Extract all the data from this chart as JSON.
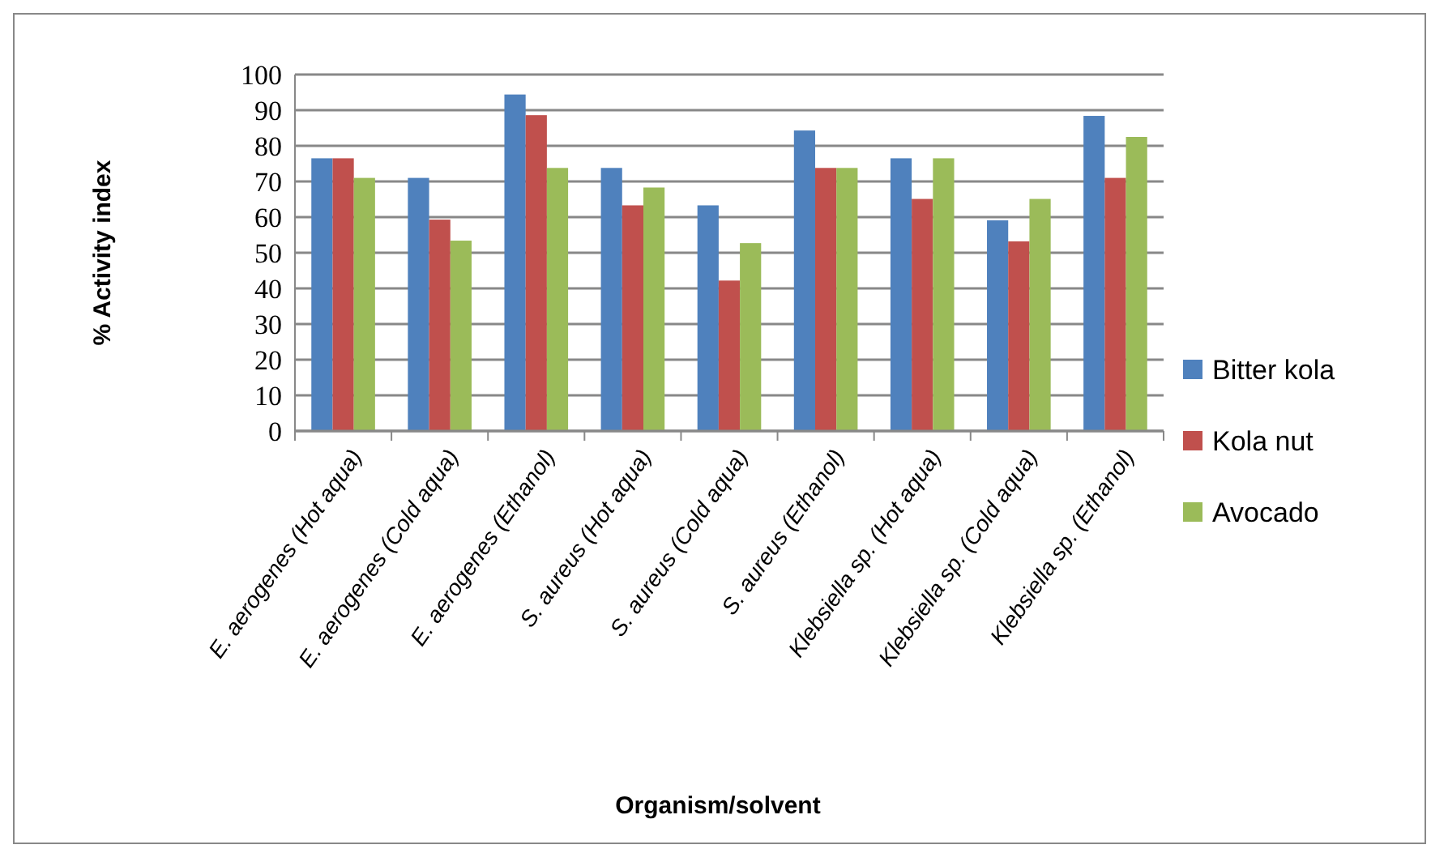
{
  "chart_data": {
    "type": "bar",
    "xlabel": "Organism/solvent",
    "ylabel": "% Activity index",
    "categories": [
      "E. aerogenes (Hot aqua)",
      "E. aerogenes (Cold aqua)",
      "E. aerogenes (Ethanol)",
      "S. aureus (Hot aqua)",
      "S. aureus (Cold aqua)",
      "S. aureus (Ethanol)",
      "Klebsiella sp. (Hot aqua)",
      "Klebsiella sp. (Cold aqua)",
      "Klebsiella sp. (Ethanol)"
    ],
    "series": [
      {
        "name": "Bitter kola",
        "color": "#4f81bd",
        "values": [
          76.5,
          71,
          94.4,
          73.8,
          63.3,
          84.3,
          76.5,
          59.1,
          88.4
        ]
      },
      {
        "name": "Kola nut",
        "color": "#c0504d",
        "values": [
          76.5,
          59.3,
          88.6,
          63.3,
          42.2,
          73.8,
          65.1,
          53.2,
          71
        ]
      },
      {
        "name": "Avocado",
        "color": "#9bbb59",
        "values": [
          71,
          53.4,
          73.8,
          68.3,
          52.7,
          73.8,
          76.5,
          65.1,
          82.5
        ]
      }
    ],
    "ylim": [
      0,
      100
    ],
    "yticks": [
      0,
      10,
      20,
      30,
      40,
      50,
      60,
      70,
      80,
      90,
      100
    ],
    "grid": "y",
    "legend": "right"
  }
}
